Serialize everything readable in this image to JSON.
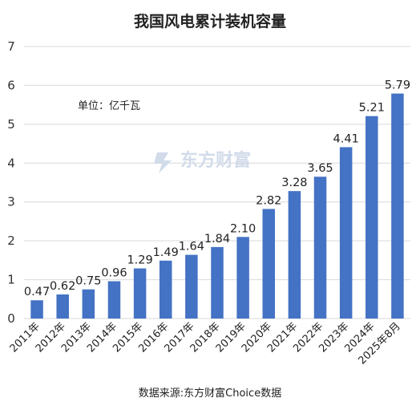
{
  "chart_data": {
    "type": "bar",
    "title": "我国风电累计装机容量",
    "unit_label": "单位：亿千瓦",
    "source": "数据来源:东方财富Choice数据",
    "watermark": "东方财富",
    "categories": [
      "2011年",
      "2012年",
      "2013年",
      "2014年",
      "2015年",
      "2016年",
      "2017年",
      "2018年",
      "2019年",
      "2020年",
      "2021年",
      "2022年",
      "2023年",
      "2024年",
      "2025年8月"
    ],
    "values": [
      0.47,
      0.62,
      0.75,
      0.96,
      1.29,
      1.49,
      1.64,
      1.84,
      2.1,
      2.82,
      3.28,
      3.65,
      4.41,
      5.21,
      5.79
    ],
    "value_labels": [
      "0.47",
      "0.62",
      "0.75",
      "0.96",
      "1.29",
      "1.49",
      "1.64",
      "1.84",
      "2.10",
      "2.82",
      "3.28",
      "3.65",
      "4.41",
      "5.21",
      "5.79"
    ],
    "yticks": [
      "0",
      "1",
      "2",
      "3",
      "4",
      "5",
      "6",
      "7"
    ],
    "ylim": [
      0,
      7
    ],
    "grid": true,
    "bar_color": "#4472c4"
  }
}
